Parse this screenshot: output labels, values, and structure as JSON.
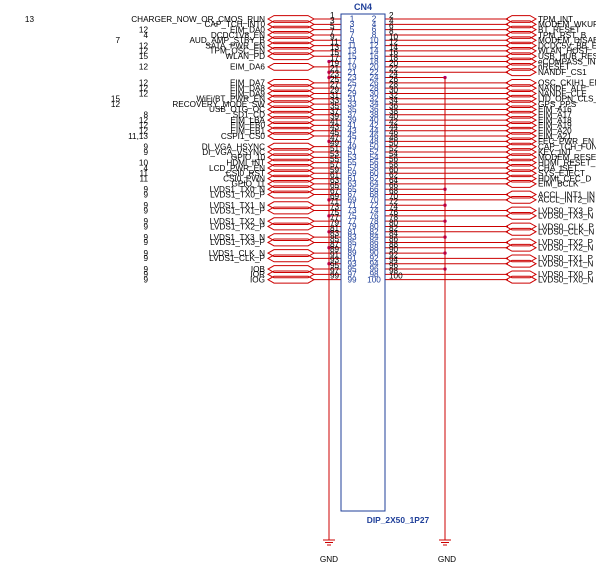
{
  "connector": {
    "refdes": "CN4",
    "part_number": "DIP_2X50_1P27"
  },
  "grounds": [
    "GND",
    "GND"
  ],
  "colors": {
    "wire": "#cc0000",
    "body": "#1f3f99",
    "junction": "#b0006e",
    "text": "#000000"
  },
  "left_nets": [
    {
      "pin": "1",
      "name": "CHARGER_NOW_OR_CMOS_RUN",
      "page": "13"
    },
    {
      "pin": "3",
      "name": "CAP_TCH_INT0",
      "page": ""
    },
    {
      "pin": "5",
      "name": "EIM_DA0",
      "page": "12"
    },
    {
      "pin": "7",
      "name": "DCDC1V8_EN",
      "page": "4"
    },
    {
      "pin": "9",
      "name": "AUD_AMP_STBY_B",
      "page": "7"
    },
    {
      "pin": "11",
      "name": "SATA_PWR_EN",
      "page": "12"
    },
    {
      "pin": "13",
      "name": "TPM_OSC_EN",
      "page": "12"
    },
    {
      "pin": "15",
      "name": "WLAN_PD",
      "page": "15"
    },
    {
      "pin": "19",
      "name": "EIM_DA6",
      "page": "12"
    },
    {
      "pin": "25",
      "name": "EIM_DA7",
      "page": "12"
    },
    {
      "pin": "27",
      "name": "EIM_DA8",
      "page": "12"
    },
    {
      "pin": "29",
      "name": "EIM_DA9",
      "page": "12"
    },
    {
      "pin": "31",
      "name": "WiFi/BT_PWR_EN",
      "page": "15"
    },
    {
      "pin": "33",
      "name": "RECOVERY_MODE_SW",
      "page": "12"
    },
    {
      "pin": "35",
      "name": "USB_OTG_OC",
      "page": ""
    },
    {
      "pin": "37",
      "name": "SD1_CD",
      "page": "8"
    },
    {
      "pin": "39",
      "name": "EIM_LBA",
      "page": "12"
    },
    {
      "pin": "41",
      "name": "EIM_EB0",
      "page": "12"
    },
    {
      "pin": "43",
      "name": "EIM_EB1",
      "page": "12"
    },
    {
      "pin": "45",
      "name": "CSPI1_CS0",
      "page": "11,13"
    },
    {
      "pin": "49",
      "name": "DI_VGA_HSYNC",
      "page": "9"
    },
    {
      "pin": "51",
      "name": "DI_VGA_VSYNC",
      "page": "9"
    },
    {
      "pin": "53",
      "name": "GPIO_10",
      "page": ""
    },
    {
      "pin": "55",
      "name": "HDMI_INT",
      "page": "10"
    },
    {
      "pin": "57",
      "name": "LCD_PWR_EN",
      "page": "4"
    },
    {
      "pin": "59",
      "name": "CSI0_RST",
      "page": "11"
    },
    {
      "pin": "61",
      "name": "CSI0_PWN",
      "page": "11"
    },
    {
      "pin": "63",
      "name": "GPIO_11",
      "page": ""
    },
    {
      "pin": "65",
      "name": "LVDS1_TX0_N",
      "page": "9"
    },
    {
      "pin": "67",
      "name": "LVDS1_TX0_P",
      "page": "9"
    },
    {
      "pin": "71",
      "name": "LVDS1_TX1_N",
      "page": "9"
    },
    {
      "pin": "73",
      "name": "LVDS1_TX1_P",
      "page": "9"
    },
    {
      "pin": "77",
      "name": "LVDS1_TX2_N",
      "page": "9"
    },
    {
      "pin": "79",
      "name": "LVDS1_TX2_P",
      "page": "9"
    },
    {
      "pin": "83",
      "name": "LVDS1_TX3_N",
      "page": "9"
    },
    {
      "pin": "85",
      "name": "LVDS1_TX3_P",
      "page": "9"
    },
    {
      "pin": "89",
      "name": "LVDS1_CLK_N",
      "page": "9"
    },
    {
      "pin": "91",
      "name": "LVDS1_CLK_P",
      "page": "9"
    },
    {
      "pin": "95",
      "name": "IOB",
      "page": "9"
    },
    {
      "pin": "97",
      "name": "IOR",
      "page": "9"
    },
    {
      "pin": "99",
      "name": "IOG",
      "page": "9"
    }
  ],
  "left_gnd_pins": [
    "17",
    "21",
    "23",
    "47",
    "69",
    "75",
    "81",
    "87",
    "93"
  ],
  "right_nets": [
    {
      "pin": "2",
      "name": "TPM_INT"
    },
    {
      "pin": "4",
      "name": "MODEM_WKUP"
    },
    {
      "pin": "6",
      "name": "BT_RESET"
    },
    {
      "pin": "8",
      "name": "TPM_RST_B"
    },
    {
      "pin": "10",
      "name": "MODEM_DISAB"
    },
    {
      "pin": "12",
      "name": "DCDC5V_BB_E"
    },
    {
      "pin": "14",
      "name": "WLAN_HOST"
    },
    {
      "pin": "16",
      "name": "USB_HUB_RES"
    },
    {
      "pin": "18",
      "name": "eCOMPASS_IN"
    },
    {
      "pin": "20",
      "name": "nRESET"
    },
    {
      "pin": "22",
      "name": "NANDF_CS1"
    },
    {
      "pin": "26",
      "name": "OSC_CKIH1_EN"
    },
    {
      "pin": "28",
      "name": "NANDF_ALE"
    },
    {
      "pin": "30",
      "name": "NANDF_CLE"
    },
    {
      "pin": "32",
      "name": "LID_OPN_CLS_"
    },
    {
      "pin": "34",
      "name": "GPS_PPS"
    },
    {
      "pin": "36",
      "name": "EIM_A16"
    },
    {
      "pin": "38",
      "name": "EIM_A17"
    },
    {
      "pin": "40",
      "name": "EIM_A18"
    },
    {
      "pin": "42",
      "name": "EIM_A19"
    },
    {
      "pin": "44",
      "name": "EIM_A20"
    },
    {
      "pin": "46",
      "name": "EIM_A21"
    },
    {
      "pin": "48",
      "name": "FEC_PWR_EN"
    },
    {
      "pin": "50",
      "name": "CAP_TCH_FUN"
    },
    {
      "pin": "52",
      "name": "KEY_INT"
    },
    {
      "pin": "54",
      "name": "MODEM_RESET"
    },
    {
      "pin": "56",
      "name": "HDMI_RESET_"
    },
    {
      "pin": "58",
      "name": "CHA_ISET"
    },
    {
      "pin": "60",
      "name": "SYS_EJECT"
    },
    {
      "pin": "62",
      "name": "HDMI_CEC_D"
    },
    {
      "pin": "64",
      "name": "EIM_BCLK"
    },
    {
      "pin": "68",
      "name": "ACCL_INT1_IN"
    },
    {
      "pin": "70",
      "name": "ACCL_INT2_IN"
    },
    {
      "pin": "74",
      "name": "LVDS0_TX3_P"
    },
    {
      "pin": "76",
      "name": "LVDS0_TX3_N"
    },
    {
      "pin": "80",
      "name": "LVDS0_CLK_P"
    },
    {
      "pin": "82",
      "name": "LVDS0_CLK_N"
    },
    {
      "pin": "86",
      "name": "LVDS0_TX2_P"
    },
    {
      "pin": "88",
      "name": "LVDS0_TX2_N"
    },
    {
      "pin": "92",
      "name": "LVDS0_TX1_P"
    },
    {
      "pin": "94",
      "name": "LVDS0_TX1_N"
    },
    {
      "pin": "98",
      "name": "LVDS0_TX0_P"
    },
    {
      "pin": "100",
      "name": "LVDS0_TX0_N"
    }
  ],
  "right_gnd_pins": [
    "24",
    "66",
    "72",
    "78",
    "84",
    "90",
    "96"
  ]
}
